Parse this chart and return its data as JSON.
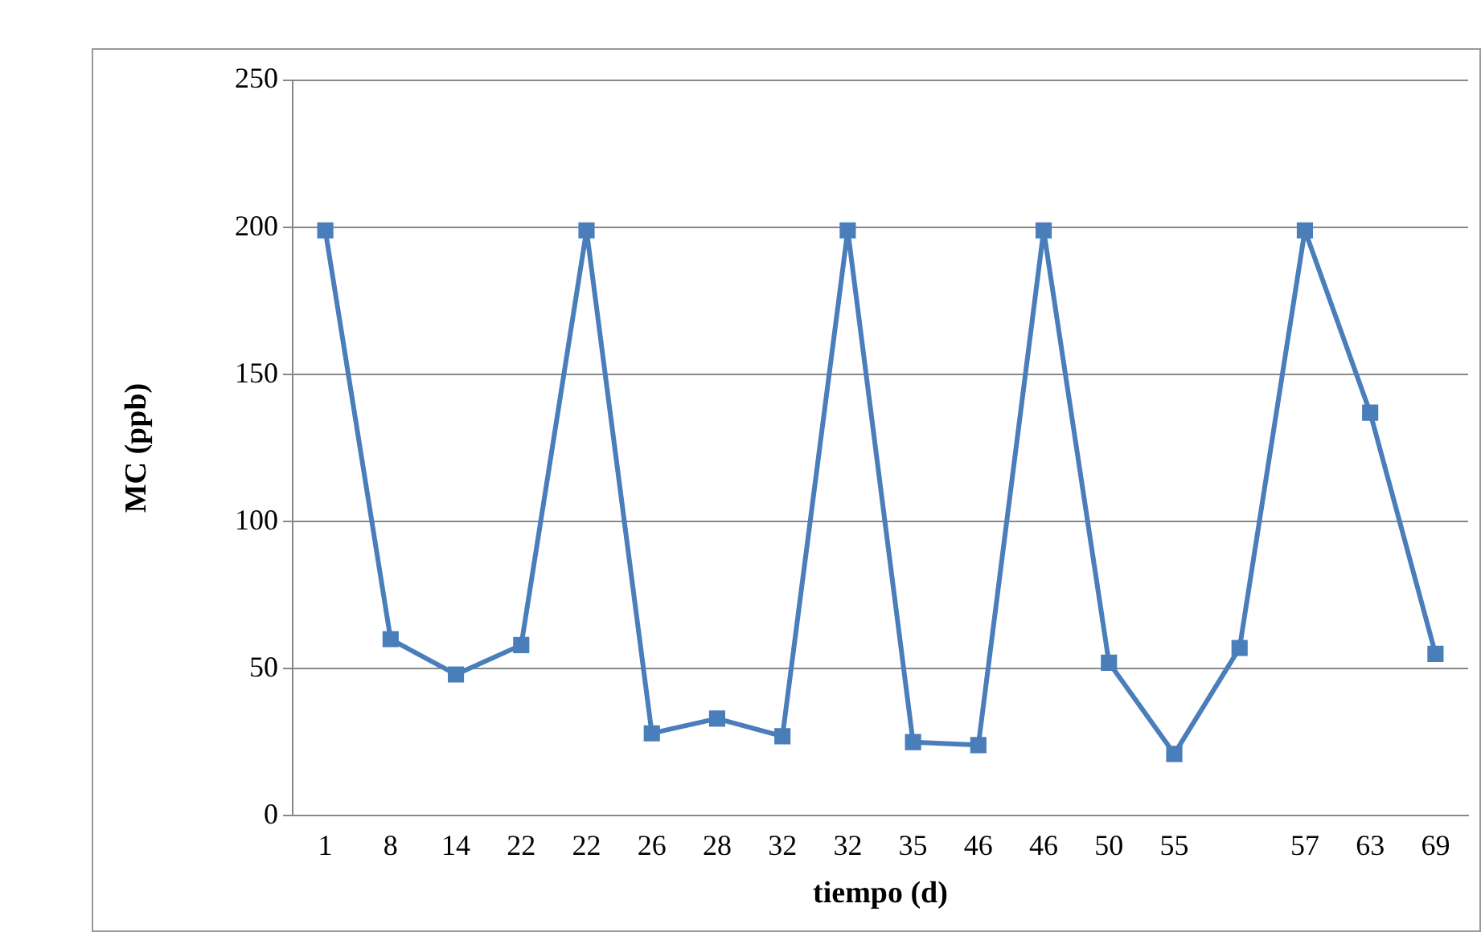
{
  "chart_data": {
    "type": "line",
    "xlabel": "tiempo (d)",
    "ylabel": "MC (ppb)",
    "categories": [
      "1",
      "8",
      "14",
      "22",
      "22",
      "26",
      "28",
      "32",
      "32",
      "35",
      "46",
      "46",
      "50",
      "55",
      null,
      "57",
      "63",
      "69"
    ],
    "series": [
      {
        "color": "#4a7ebb",
        "values": [
          199,
          60,
          48,
          58,
          199,
          28,
          33,
          27,
          199,
          25,
          24,
          199,
          52,
          21,
          57,
          199,
          137,
          55
        ]
      }
    ],
    "ylim": [
      0,
      250
    ],
    "yticks": [
      0,
      50,
      100,
      150,
      200,
      250
    ],
    "grid": "y",
    "legend": false,
    "marker": "square",
    "line_style": "solid"
  }
}
